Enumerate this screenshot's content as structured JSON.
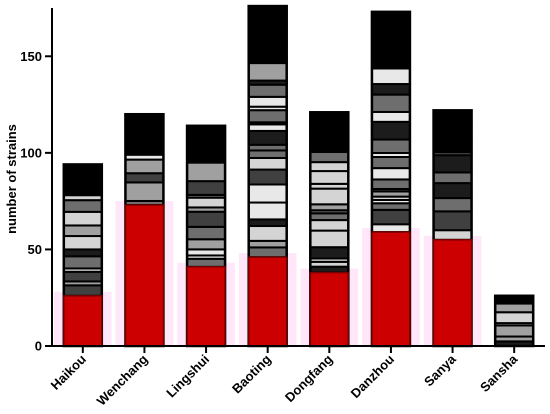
{
  "chart_data": {
    "type": "bar",
    "title": "",
    "xlabel": "",
    "ylabel": "number of strains",
    "ylim": [
      0,
      175
    ],
    "yticks": [
      0,
      50,
      100,
      150
    ],
    "grid": false,
    "legend": "none",
    "categories": [
      "Haikou",
      "Wenchang",
      "Lingshui",
      "Baoting",
      "Dongfang",
      "Danzhou",
      "Sanya",
      "Sansha"
    ],
    "series": [
      {
        "values": [
          94,
          120,
          114,
          176,
          121,
          173,
          122,
          26
        ]
      },
      {
        "values": [
          26,
          73,
          41,
          46,
          38,
          59,
          55,
          0
        ]
      }
    ],
    "colors": {
      "total_fill": "#000000",
      "highlight_bar": "#cc0000",
      "highlight_glow": "#ffd6f5",
      "segment_shades": [
        "#d4d4d4",
        "#a0a0a0",
        "#6e6e6e",
        "#404040",
        "#1c1c1c",
        "#e8e8e8"
      ]
    }
  }
}
